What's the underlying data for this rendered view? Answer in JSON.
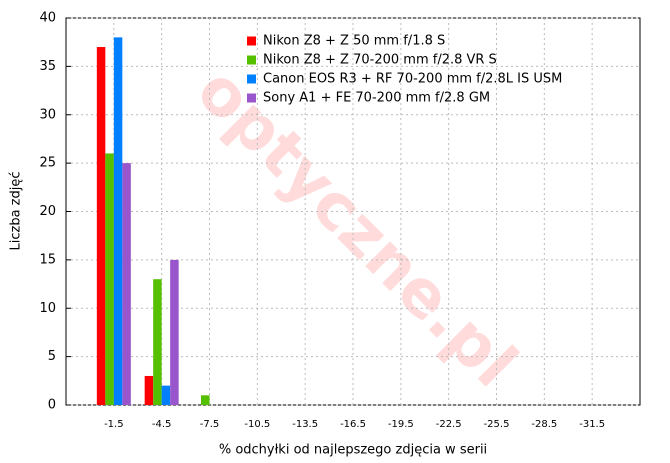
{
  "chart_data": {
    "type": "bar",
    "watermark": "optyczne.pl",
    "x_label": "% odchyłki od najlepszego zdjęcia w serii",
    "y_label": "Liczba zdjęć",
    "categories": [
      "-1.5",
      "-4.5",
      "-7.5",
      "-10.5",
      "-13.5",
      "-16.5",
      "-19.5",
      "-22.5",
      "-25.5",
      "-28.5",
      "-31.5"
    ],
    "series": [
      {
        "name": "Nikon Z8 + Z 50 mm f/1.8 S",
        "color": "#ff0000",
        "values": [
          37,
          3,
          0,
          0,
          0,
          0,
          0,
          0,
          0,
          0,
          0
        ]
      },
      {
        "name": "Nikon Z8 + Z 70-200 mm f/2.8 VR S",
        "color": "#55c000",
        "values": [
          26,
          13,
          1,
          0,
          0,
          0,
          0,
          0,
          0,
          0,
          0
        ]
      },
      {
        "name": "Canon EOS R3 + RF 70-200 mm f/2.8L IS USM",
        "color": "#0080ff",
        "values": [
          38,
          2,
          0,
          0,
          0,
          0,
          0,
          0,
          0,
          0,
          0
        ]
      },
      {
        "name": "Sony A1 + FE 70-200 mm f/2.8 GM",
        "color": "#9955cc",
        "values": [
          25,
          15,
          0,
          0,
          0,
          0,
          0,
          0,
          0,
          0,
          0
        ]
      }
    ],
    "ylim": [
      0,
      40
    ],
    "yticks": [
      0,
      5,
      10,
      15,
      20,
      25,
      30,
      35,
      40
    ],
    "grid": true,
    "legend": "top-left"
  }
}
